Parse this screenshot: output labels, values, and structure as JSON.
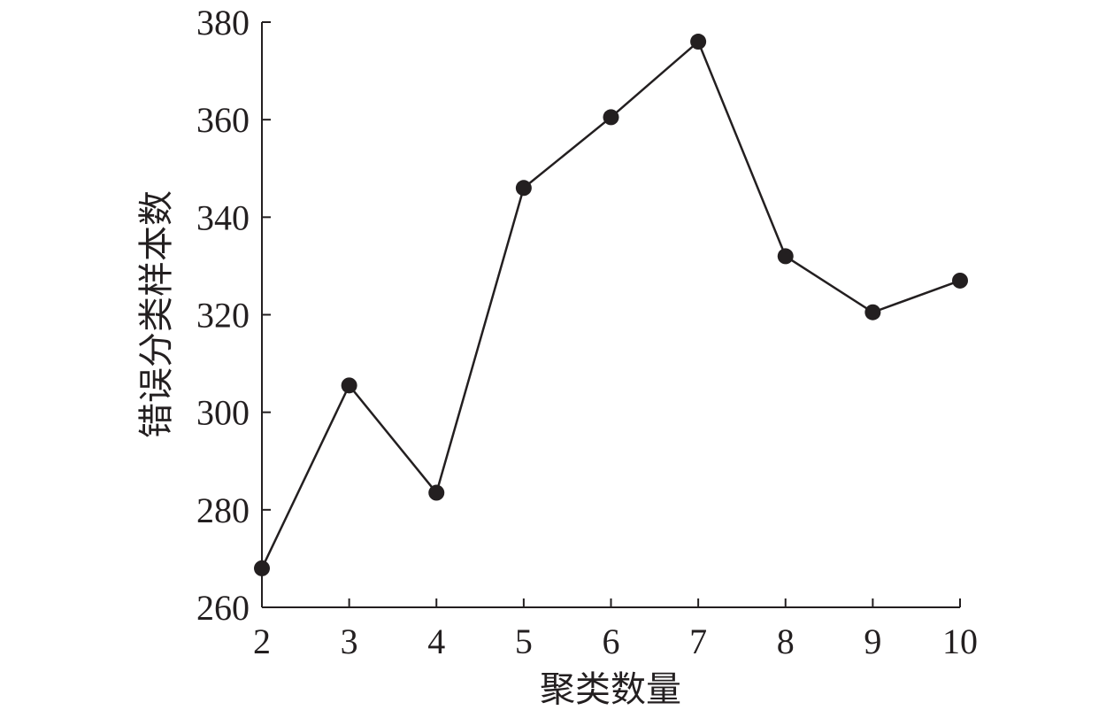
{
  "chart_data": {
    "type": "line",
    "title": "",
    "xlabel": "聚类数量",
    "ylabel": "错误分类样本数",
    "x": [
      2,
      3,
      4,
      5,
      6,
      7,
      8,
      9,
      10
    ],
    "x_tick_labels": [
      "2",
      "3",
      "4",
      "5",
      "6",
      "7",
      "8",
      "9",
      "10"
    ],
    "y_ticks": [
      260,
      280,
      300,
      320,
      340,
      360,
      380
    ],
    "y_tick_labels": [
      "260",
      "280",
      "300",
      "320",
      "340",
      "360",
      "380"
    ],
    "xlim": [
      2,
      10
    ],
    "ylim": [
      260,
      380
    ],
    "grid": false,
    "legend": "none",
    "series": [
      {
        "values": [
          268,
          305.5,
          283.5,
          346,
          360.5,
          376,
          332,
          320.5,
          327
        ],
        "color": "#231f20",
        "marker": "circle"
      }
    ]
  }
}
